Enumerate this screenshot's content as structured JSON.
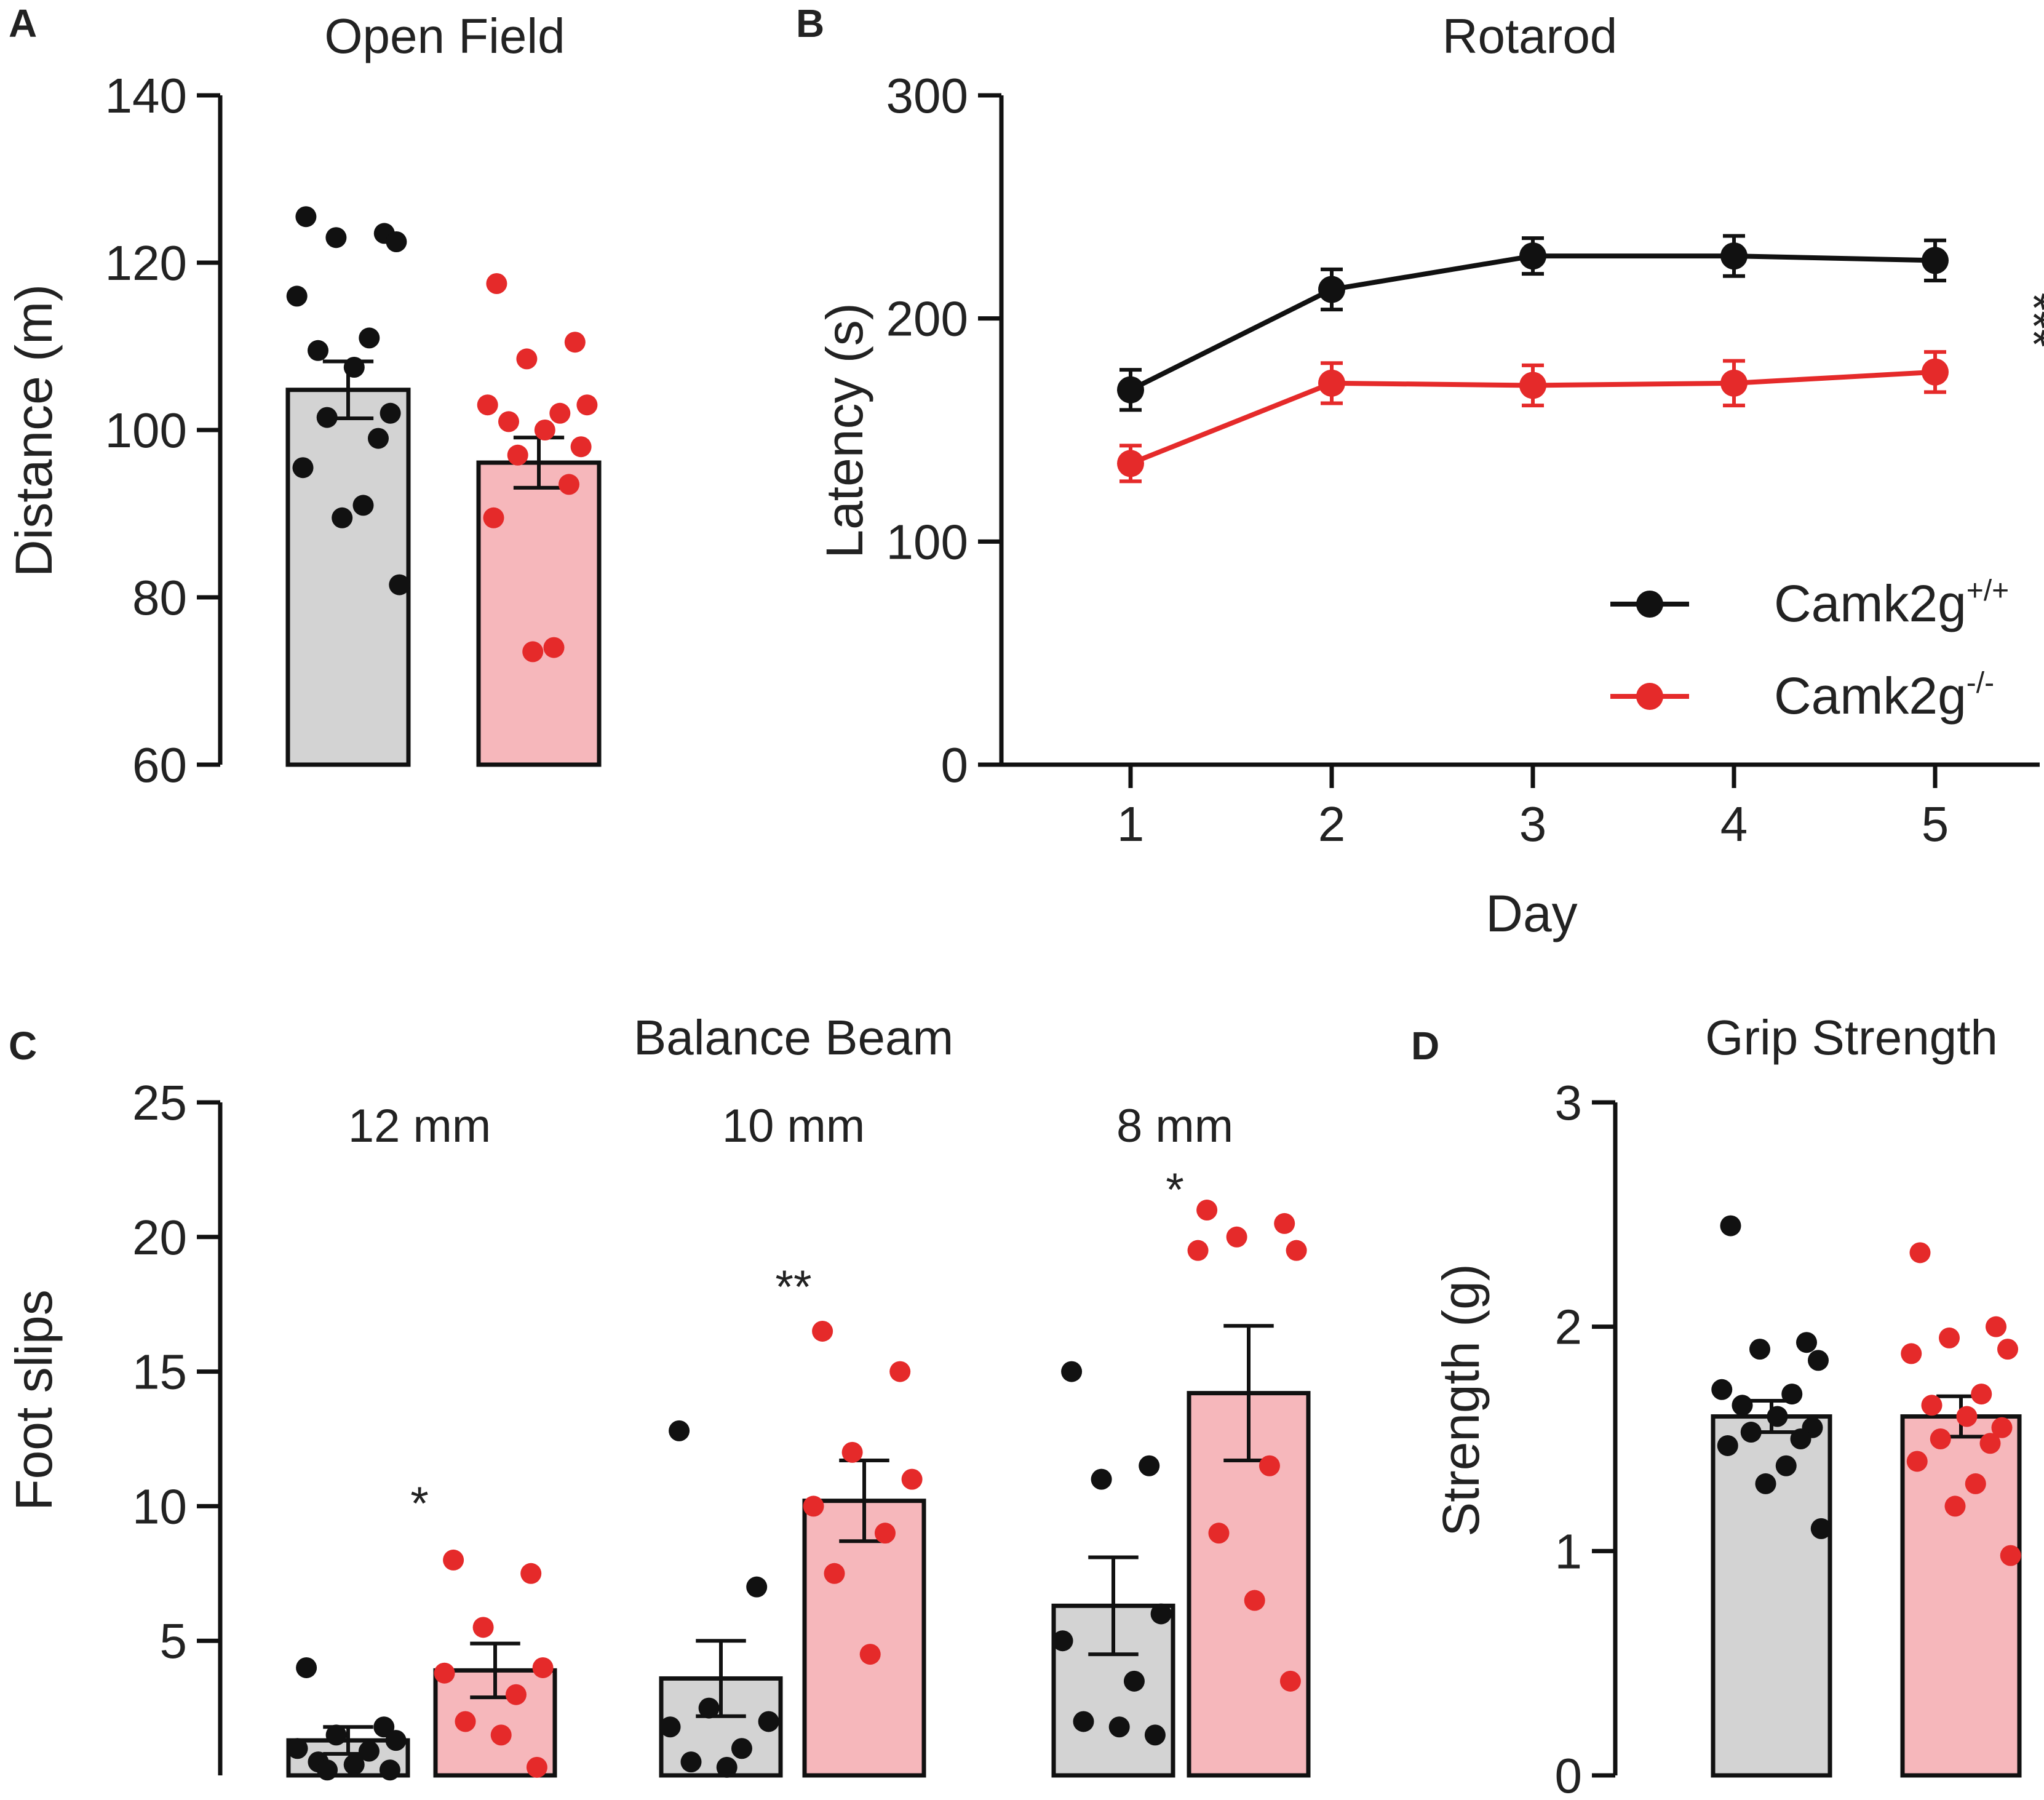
{
  "colors": {
    "wt": "#111111",
    "ko": "#e52a2a",
    "wt_bar": "#d3d3d3",
    "ko_bar": "#f6b7bb",
    "axis": "#111111"
  },
  "panels": {
    "A": {
      "letter": "A"
    },
    "B": {
      "letter": "B"
    },
    "C": {
      "letter": "C"
    },
    "D": {
      "letter": "D"
    }
  },
  "chart_data": [
    {
      "id": "A",
      "type": "bar",
      "title": "Open Field",
      "xlabel": "",
      "ylabel": "Distance (m)",
      "ylim": [
        60,
        140
      ],
      "yticks": [
        60,
        80,
        100,
        120,
        140
      ],
      "ytick_labels": [
        "60",
        "80",
        "100",
        "120",
        "140"
      ],
      "groups": [
        "Camk2g+/+",
        "Camk2g-/-"
      ],
      "means": [
        104.8,
        96.1
      ],
      "sem": [
        3.4,
        3.0
      ],
      "points": [
        [
          125.5,
          123.5,
          123.0,
          122.5,
          116.0,
          111.0,
          109.5,
          107.5,
          102.0,
          101.5,
          99.0,
          95.5,
          91.0,
          89.5,
          81.5
        ],
        [
          117.5,
          110.5,
          108.5,
          103.0,
          103.0,
          102.0,
          101.0,
          100.0,
          98.0,
          97.0,
          93.5,
          89.5,
          74.0,
          73.5
        ]
      ]
    },
    {
      "id": "B",
      "type": "line",
      "title": "Rotarod",
      "xlabel": "Day",
      "ylabel": "Latency (s)",
      "x": [
        1,
        2,
        3,
        4,
        5
      ],
      "xtick_labels": [
        "1",
        "2",
        "3",
        "4",
        "5"
      ],
      "ylim": [
        0,
        300
      ],
      "yticks": [
        0,
        100,
        200,
        300
      ],
      "ytick_labels": [
        "0",
        "100",
        "200",
        "300"
      ],
      "series": [
        {
          "name": "Camk2g",
          "sup": "+/+",
          "values": [
            168,
            213,
            228,
            228,
            226
          ],
          "sem": [
            9,
            9,
            8,
            9,
            9
          ]
        },
        {
          "name": "Camk2g",
          "sup": "-/-",
          "values": [
            135,
            171,
            170,
            171,
            176
          ],
          "sem": [
            8,
            9,
            9,
            10,
            9
          ]
        }
      ],
      "legend_position": "lower-right",
      "significance": "***"
    },
    {
      "id": "C",
      "type": "bar",
      "title": "Balance Beam",
      "xlabel": "",
      "ylabel": "Foot slips",
      "ylim": [
        0,
        25
      ],
      "yticks": [
        5,
        10,
        15,
        20,
        25
      ],
      "ytick_labels": [
        "5",
        "10",
        "15",
        "20",
        "25"
      ],
      "categories": [
        "12 mm",
        "10 mm",
        "8 mm"
      ],
      "groups": [
        "Camk2g+/+",
        "Camk2g-/-"
      ],
      "means": [
        [
          1.3,
          3.9
        ],
        [
          3.6,
          10.2
        ],
        [
          6.3,
          14.2
        ]
      ],
      "sem": [
        [
          0.5,
          1.0
        ],
        [
          1.4,
          1.5
        ],
        [
          1.8,
          2.5
        ]
      ],
      "points": [
        [
          [
            4.0,
            1.8,
            1.5,
            1.3,
            1.0,
            0.9,
            0.5,
            0.4,
            0.2,
            0.2
          ],
          [
            8.0,
            7.5,
            5.5,
            4.0,
            3.8,
            3.0,
            2.0,
            1.5,
            0.3
          ]
        ],
        [
          [
            12.8,
            7.0,
            2.5,
            2.0,
            1.8,
            1.0,
            0.5,
            0.3
          ],
          [
            16.5,
            15.0,
            12.0,
            11.0,
            10.0,
            9.0,
            7.5,
            4.5
          ]
        ],
        [
          [
            15.0,
            11.5,
            11.0,
            6.0,
            5.0,
            3.5,
            2.0,
            1.8,
            1.5
          ],
          [
            21.0,
            20.5,
            20.0,
            19.5,
            19.5,
            11.5,
            9.0,
            6.5,
            3.5
          ]
        ]
      ],
      "significance": [
        "*",
        "**",
        "*"
      ]
    },
    {
      "id": "D",
      "type": "bar",
      "title": "Grip Strength",
      "xlabel": "",
      "ylabel": "Strength (g)",
      "ylim": [
        0,
        3
      ],
      "yticks": [
        0,
        1,
        2,
        3
      ],
      "ytick_labels": [
        "0",
        "1",
        "2",
        "3"
      ],
      "groups": [
        "Camk2g+/+",
        "Camk2g-/-"
      ],
      "means": [
        1.6,
        1.6
      ],
      "sem": [
        0.07,
        0.09
      ],
      "points": [
        [
          2.45,
          1.93,
          1.9,
          1.85,
          1.72,
          1.7,
          1.65,
          1.6,
          1.55,
          1.53,
          1.5,
          1.47,
          1.38,
          1.3,
          1.1
        ],
        [
          2.33,
          2.0,
          1.95,
          1.9,
          1.88,
          1.7,
          1.65,
          1.6,
          1.55,
          1.5,
          1.48,
          1.4,
          1.3,
          1.2,
          0.98
        ]
      ]
    }
  ]
}
